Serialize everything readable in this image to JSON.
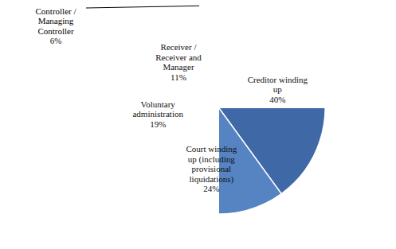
{
  "chart_data": {
    "type": "pie",
    "categories": [
      "Creditor winding up",
      "Court winding up (including provisional liquidations)",
      "Voluntary administration",
      "Receiver / Receiver and Manager",
      "Controller / Managing Controller"
    ],
    "values": [
      40,
      24,
      19,
      11,
      6
    ],
    "value_labels": [
      "40%",
      "24%",
      "19%",
      "11%",
      "6%"
    ],
    "colors": [
      "#3f69a6",
      "#5683c2",
      "#7e9fd0",
      "#a6bce0",
      "#c6d3ea"
    ],
    "data_labels": true
  }
}
